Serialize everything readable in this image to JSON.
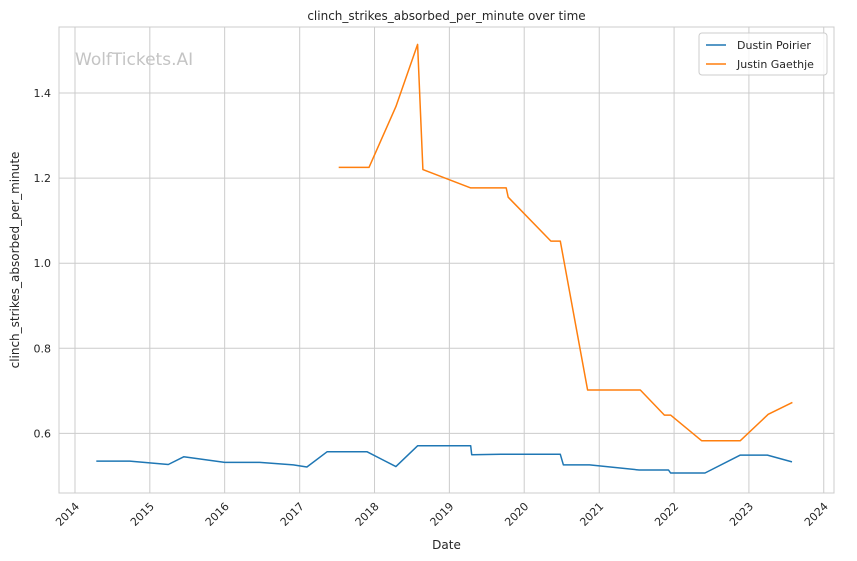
{
  "chart_data": {
    "type": "line",
    "title": "clinch_strikes_absorbed_per_minute over time",
    "xlabel": "Date",
    "ylabel": "clinch_strikes_absorbed_per_minute",
    "watermark": "WolfTickets.AI",
    "xlim": [
      "2013-10-15",
      "2024-02-20"
    ],
    "ylim": [
      0.46,
      1.555
    ],
    "x_ticks": [
      "2014",
      "2015",
      "2016",
      "2017",
      "2018",
      "2019",
      "2020",
      "2021",
      "2022",
      "2023",
      "2024"
    ],
    "y_ticks": [
      "0.6",
      "0.8",
      "1.0",
      "1.2",
      "1.4"
    ],
    "grid": true,
    "legend_position": "top-right",
    "series": [
      {
        "name": "Dustin Poirier",
        "color": "#1f77b4",
        "points": [
          [
            "2014-04-15",
            0.535
          ],
          [
            "2014-09-25",
            0.535
          ],
          [
            "2015-04-01",
            0.527
          ],
          [
            "2015-06-15",
            0.545
          ],
          [
            "2016-01-01",
            0.532
          ],
          [
            "2016-06-20",
            0.532
          ],
          [
            "2016-12-01",
            0.526
          ],
          [
            "2017-02-05",
            0.521
          ],
          [
            "2017-05-15",
            0.557
          ],
          [
            "2017-11-25",
            0.557
          ],
          [
            "2018-04-15",
            0.522
          ],
          [
            "2018-07-30",
            0.571
          ],
          [
            "2019-04-15",
            0.571
          ],
          [
            "2019-04-20",
            0.55
          ],
          [
            "2019-09-10",
            0.551
          ],
          [
            "2020-06-25",
            0.551
          ],
          [
            "2020-07-10",
            0.526
          ],
          [
            "2020-11-15",
            0.526
          ],
          [
            "2021-07-15",
            0.514
          ],
          [
            "2021-12-05",
            0.514
          ],
          [
            "2021-12-15",
            0.507
          ],
          [
            "2022-06-01",
            0.507
          ],
          [
            "2022-11-20",
            0.549
          ],
          [
            "2023-04-01",
            0.549
          ],
          [
            "2023-07-30",
            0.533
          ]
        ]
      },
      {
        "name": "Justin Gaethje",
        "color": "#ff7f0e",
        "points": [
          [
            "2017-07-10",
            1.225
          ],
          [
            "2017-12-05",
            1.225
          ],
          [
            "2018-04-15",
            1.368
          ],
          [
            "2018-07-30",
            1.514
          ],
          [
            "2018-08-25",
            1.22
          ],
          [
            "2019-04-15",
            1.177
          ],
          [
            "2019-10-05",
            1.177
          ],
          [
            "2019-10-15",
            1.155
          ],
          [
            "2020-05-10",
            1.052
          ],
          [
            "2020-06-25",
            1.052
          ],
          [
            "2020-11-05",
            0.702
          ],
          [
            "2021-07-20",
            0.702
          ],
          [
            "2021-11-15",
            0.643
          ],
          [
            "2021-12-15",
            0.643
          ],
          [
            "2022-05-15",
            0.583
          ],
          [
            "2022-11-20",
            0.583
          ],
          [
            "2023-04-05",
            0.645
          ],
          [
            "2023-08-01",
            0.673
          ]
        ]
      }
    ]
  }
}
